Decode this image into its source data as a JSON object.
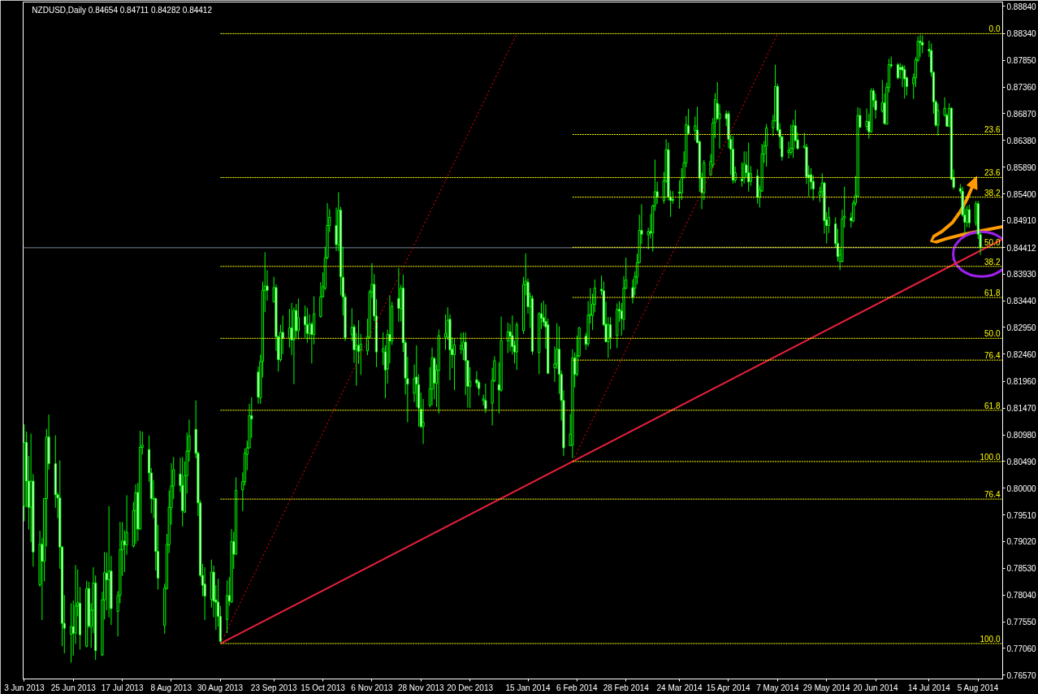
{
  "chart_data": {
    "type": "candlestick",
    "title": "NZDUSD,Daily 0.84654 0.84711 0.84282 0.84412",
    "color": "#00ff00",
    "x": [
      "2013-06-03",
      "2013-06-04",
      "2013-06-05",
      "2013-06-06",
      "2013-06-07",
      "2013-06-10",
      "2013-06-11",
      "2013-06-12",
      "2013-06-13",
      "2013-06-14",
      "2013-06-17",
      "2013-06-18",
      "2013-06-19",
      "2013-06-20",
      "2013-06-21",
      "2013-06-24",
      "2013-06-25",
      "2013-06-26",
      "2013-06-27",
      "2013-06-28",
      "2013-07-01",
      "2013-07-02",
      "2013-07-03",
      "2013-07-04",
      "2013-07-05",
      "2013-07-08",
      "2013-07-09",
      "2013-07-10",
      "2013-07-11",
      "2013-07-12",
      "2013-07-15",
      "2013-07-16",
      "2013-07-17",
      "2013-07-18",
      "2013-07-19",
      "2013-07-22",
      "2013-07-23",
      "2013-07-24",
      "2013-07-25",
      "2013-07-26",
      "2013-07-29",
      "2013-07-30",
      "2013-07-31",
      "2013-08-01",
      "2013-08-02",
      "2013-08-05",
      "2013-08-06",
      "2013-08-07",
      "2013-08-08",
      "2013-08-09",
      "2013-08-12",
      "2013-08-13",
      "2013-08-14",
      "2013-08-15",
      "2013-08-16",
      "2013-08-19",
      "2013-08-20",
      "2013-08-21",
      "2013-08-22",
      "2013-08-23",
      "2013-08-26",
      "2013-08-27",
      "2013-08-28",
      "2013-08-29",
      "2013-08-30",
      "2013-09-02",
      "2013-09-03",
      "2013-09-04",
      "2013-09-05",
      "2013-09-06",
      "2013-09-09",
      "2013-09-10",
      "2013-09-11",
      "2013-09-12",
      "2013-09-13",
      "2013-09-16",
      "2013-09-17",
      "2013-09-18",
      "2013-09-19",
      "2013-09-20",
      "2013-09-23",
      "2013-09-24",
      "2013-09-25",
      "2013-09-26",
      "2013-09-27",
      "2013-09-30",
      "2013-10-01",
      "2013-10-02",
      "2013-10-03",
      "2013-10-04",
      "2013-10-07",
      "2013-10-08",
      "2013-10-09",
      "2013-10-10",
      "2013-10-11",
      "2013-10-14",
      "2013-10-15",
      "2013-10-16",
      "2013-10-17",
      "2013-10-18",
      "2013-10-21",
      "2013-10-22",
      "2013-10-23",
      "2013-10-24",
      "2013-10-25",
      "2013-10-28",
      "2013-10-29",
      "2013-10-30",
      "2013-10-31",
      "2013-11-01",
      "2013-11-04",
      "2013-11-05",
      "2013-11-06",
      "2013-11-07",
      "2013-11-08",
      "2013-11-11",
      "2013-11-12",
      "2013-11-13",
      "2013-11-14",
      "2013-11-15",
      "2013-11-18",
      "2013-11-19",
      "2013-11-20",
      "2013-11-21",
      "2013-11-22",
      "2013-11-25",
      "2013-11-26",
      "2013-11-27",
      "2013-11-28",
      "2013-11-29",
      "2013-12-02",
      "2013-12-03",
      "2013-12-04",
      "2013-12-05",
      "2013-12-06",
      "2013-12-09",
      "2013-12-10",
      "2013-12-11",
      "2013-12-12",
      "2013-12-13",
      "2013-12-16",
      "2013-12-17",
      "2013-12-18",
      "2013-12-19",
      "2013-12-20",
      "2013-12-23",
      "2013-12-24",
      "2013-12-26",
      "2013-12-27",
      "2013-12-30",
      "2013-12-31",
      "2014-01-02",
      "2014-01-03",
      "2014-01-06",
      "2014-01-07",
      "2014-01-08",
      "2014-01-09",
      "2014-01-10",
      "2014-01-13",
      "2014-01-14",
      "2014-01-15",
      "2014-01-16",
      "2014-01-17",
      "2014-01-20",
      "2014-01-21",
      "2014-01-22",
      "2014-01-23",
      "2014-01-24",
      "2014-01-27",
      "2014-01-28",
      "2014-01-29",
      "2014-01-30",
      "2014-01-31",
      "2014-02-03",
      "2014-02-04",
      "2014-02-05",
      "2014-02-06",
      "2014-02-07",
      "2014-02-10",
      "2014-02-11",
      "2014-02-12",
      "2014-02-13",
      "2014-02-14",
      "2014-02-17",
      "2014-02-18",
      "2014-02-19",
      "2014-02-20",
      "2014-02-21",
      "2014-02-24",
      "2014-02-25",
      "2014-02-26",
      "2014-02-27",
      "2014-02-28",
      "2014-03-03",
      "2014-03-04",
      "2014-03-05",
      "2014-03-06",
      "2014-03-07",
      "2014-03-10",
      "2014-03-11",
      "2014-03-12",
      "2014-03-13",
      "2014-03-14",
      "2014-03-17",
      "2014-03-18",
      "2014-03-19",
      "2014-03-20",
      "2014-03-21",
      "2014-03-24",
      "2014-03-25",
      "2014-03-26",
      "2014-03-27",
      "2014-03-28",
      "2014-03-31",
      "2014-04-01",
      "2014-04-02",
      "2014-04-03",
      "2014-04-04",
      "2014-04-07",
      "2014-04-08",
      "2014-04-09",
      "2014-04-10",
      "2014-04-11",
      "2014-04-14",
      "2014-04-15",
      "2014-04-16",
      "2014-04-17",
      "2014-04-18",
      "2014-04-21",
      "2014-04-22",
      "2014-04-23",
      "2014-04-24",
      "2014-04-25",
      "2014-04-28",
      "2014-04-29",
      "2014-04-30",
      "2014-05-01",
      "2014-05-02",
      "2014-05-05",
      "2014-05-06",
      "2014-05-07",
      "2014-05-08",
      "2014-05-09",
      "2014-05-12",
      "2014-05-13",
      "2014-05-14",
      "2014-05-15",
      "2014-05-16",
      "2014-05-19",
      "2014-05-20",
      "2014-05-21",
      "2014-05-22",
      "2014-05-23",
      "2014-05-26",
      "2014-05-27",
      "2014-05-28",
      "2014-05-29",
      "2014-05-30",
      "2014-06-02",
      "2014-06-03",
      "2014-06-04",
      "2014-06-05",
      "2014-06-06",
      "2014-06-09",
      "2014-06-10",
      "2014-06-11",
      "2014-06-12",
      "2014-06-13",
      "2014-06-16",
      "2014-06-17",
      "2014-06-18",
      "2014-06-19",
      "2014-06-20",
      "2014-06-23",
      "2014-06-24",
      "2014-06-25",
      "2014-06-26",
      "2014-06-27",
      "2014-06-30",
      "2014-07-01",
      "2014-07-02",
      "2014-07-03",
      "2014-07-04",
      "2014-07-07",
      "2014-07-08",
      "2014-07-09",
      "2014-07-10",
      "2014-07-11",
      "2014-07-14",
      "2014-07-15",
      "2014-07-16",
      "2014-07-17",
      "2014-07-18",
      "2014-07-21",
      "2014-07-22",
      "2014-07-23",
      "2014-07-24",
      "2014-07-25",
      "2014-07-28",
      "2014-07-29",
      "2014-07-30",
      "2014-07-31",
      "2014-08-01",
      "2014-08-04",
      "2014-08-05",
      "2014-08-06"
    ],
    "ohlc": [
      [
        0.7967,
        0.8117,
        0.7939,
        0.8084
      ],
      [
        0.8084,
        0.8104,
        0.7965,
        0.8013
      ],
      [
        0.8013,
        0.8059,
        0.7924,
        0.7965
      ],
      [
        0.7965,
        0.81,
        0.7901,
        0.8013
      ],
      [
        0.8013,
        0.8026,
        0.7856,
        0.7883
      ],
      [
        0.7823,
        0.7922,
        0.7819,
        0.7897
      ],
      [
        0.7897,
        0.7909,
        0.7758,
        0.7866
      ],
      [
        0.7866,
        0.7981,
        0.7829,
        0.7981
      ],
      [
        0.7981,
        0.8109,
        0.7893,
        0.8094
      ],
      [
        0.8094,
        0.8135,
        0.8034,
        0.8045
      ],
      [
        0.8045,
        0.8097,
        0.7964,
        0.7988
      ],
      [
        0.7988,
        0.7992,
        0.7945,
        0.7982
      ],
      [
        0.7982,
        0.8051,
        0.7852,
        0.7892
      ],
      [
        0.7892,
        0.7894,
        0.771,
        0.7752
      ],
      [
        0.7752,
        0.7804,
        0.7697,
        0.7743
      ],
      [
        0.7732,
        0.7789,
        0.768,
        0.7746
      ],
      [
        0.7746,
        0.7794,
        0.7693,
        0.7734
      ],
      [
        0.7734,
        0.7859,
        0.7714,
        0.7784
      ],
      [
        0.7784,
        0.7851,
        0.7765,
        0.779
      ],
      [
        0.7789,
        0.7819,
        0.7704,
        0.7731
      ],
      [
        0.771,
        0.783,
        0.7708,
        0.7816
      ],
      [
        0.7816,
        0.7828,
        0.7744,
        0.7747
      ],
      [
        0.7746,
        0.7789,
        0.7707,
        0.7776
      ],
      [
        0.7776,
        0.7855,
        0.7734,
        0.7826
      ],
      [
        0.7826,
        0.784,
        0.7685,
        0.7702
      ],
      [
        0.7694,
        0.781,
        0.7692,
        0.7795
      ],
      [
        0.7795,
        0.7883,
        0.7759,
        0.7845
      ],
      [
        0.7844,
        0.7882,
        0.7776,
        0.7832
      ],
      [
        0.7832,
        0.7967,
        0.7763,
        0.7848
      ],
      [
        0.7848,
        0.7876,
        0.7749,
        0.7779
      ],
      [
        0.7774,
        0.7811,
        0.7728,
        0.7803
      ],
      [
        0.7804,
        0.7938,
        0.7789,
        0.7887
      ],
      [
        0.7887,
        0.7938,
        0.7839,
        0.7903
      ],
      [
        0.7903,
        0.7923,
        0.7846,
        0.7896
      ],
      [
        0.7896,
        0.7987,
        0.7878,
        0.7919
      ],
      [
        0.7894,
        0.7975,
        0.7891,
        0.7959
      ],
      [
        0.7959,
        0.8007,
        0.7898,
        0.7992
      ],
      [
        0.7992,
        0.801,
        0.7903,
        0.7925
      ],
      [
        0.7925,
        0.8105,
        0.7924,
        0.8075
      ],
      [
        0.8075,
        0.8104,
        0.8062,
        0.8079
      ],
      [
        0.8071,
        0.8097,
        0.8012,
        0.8028
      ],
      [
        0.8028,
        0.8037,
        0.7954,
        0.7981
      ],
      [
        0.7981,
        0.8015,
        0.7945,
        0.798
      ],
      [
        0.7981,
        0.7983,
        0.7849,
        0.7884
      ],
      [
        0.7884,
        0.7933,
        0.7814,
        0.7835
      ],
      [
        0.7748,
        0.7825,
        0.7733,
        0.7817
      ],
      [
        0.7816,
        0.7916,
        0.7814,
        0.7897
      ],
      [
        0.7896,
        0.7996,
        0.7881,
        0.7965
      ],
      [
        0.7964,
        0.8046,
        0.7933,
        0.8004
      ],
      [
        0.8004,
        0.8057,
        0.798,
        0.8034
      ],
      [
        0.8026,
        0.8056,
        0.7993,
        0.8005
      ],
      [
        0.8005,
        0.8057,
        0.793,
        0.7959
      ],
      [
        0.7956,
        0.8049,
        0.7955,
        0.8023
      ],
      [
        0.8023,
        0.8102,
        0.799,
        0.8068
      ],
      [
        0.8068,
        0.8126,
        0.8049,
        0.8096
      ],
      [
        0.8108,
        0.8161,
        0.8055,
        0.8064
      ],
      [
        0.8064,
        0.8067,
        0.7949,
        0.7973
      ],
      [
        0.7973,
        0.7978,
        0.7837,
        0.784
      ],
      [
        0.784,
        0.7861,
        0.7802,
        0.7822
      ],
      [
        0.7824,
        0.7855,
        0.7758,
        0.7802
      ],
      [
        0.7796,
        0.7869,
        0.7781,
        0.7846
      ],
      [
        0.7846,
        0.7858,
        0.7763,
        0.7793
      ],
      [
        0.7795,
        0.7822,
        0.774,
        0.7791
      ],
      [
        0.7791,
        0.7834,
        0.7746,
        0.7765
      ],
      [
        0.7765,
        0.7784,
        0.7717,
        0.7719
      ],
      [
        0.7759,
        0.7831,
        0.7734,
        0.7803
      ],
      [
        0.7803,
        0.7837,
        0.7784,
        0.7793
      ],
      [
        0.7791,
        0.7925,
        0.779,
        0.7902
      ],
      [
        0.7902,
        0.792,
        0.7852,
        0.7879
      ],
      [
        0.7879,
        0.802,
        0.7878,
        0.7996
      ],
      [
        0.7997,
        0.8029,
        0.7958,
        0.8012
      ],
      [
        0.8012,
        0.8073,
        0.8005,
        0.8064
      ],
      [
        0.8062,
        0.8087,
        0.8033,
        0.8074
      ],
      [
        0.8074,
        0.8155,
        0.8073,
        0.8133
      ],
      [
        0.8133,
        0.8167,
        0.8092,
        0.8127
      ],
      [
        0.8213,
        0.8223,
        0.8155,
        0.8167
      ],
      [
        0.8166,
        0.8245,
        0.8155,
        0.8232
      ],
      [
        0.8233,
        0.8379,
        0.8203,
        0.8363
      ],
      [
        0.8363,
        0.8433,
        0.8323,
        0.8371
      ],
      [
        0.8371,
        0.84,
        0.8344,
        0.8363
      ],
      [
        0.8342,
        0.8388,
        0.8341,
        0.8368
      ],
      [
        0.8368,
        0.8374,
        0.8252,
        0.8278
      ],
      [
        0.8278,
        0.828,
        0.8214,
        0.8236
      ],
      [
        0.8236,
        0.83,
        0.8232,
        0.8286
      ],
      [
        0.8286,
        0.8317,
        0.8246,
        0.8275
      ],
      [
        0.8275,
        0.8329,
        0.8258,
        0.8294
      ],
      [
        0.8294,
        0.834,
        0.8244,
        0.8272
      ],
      [
        0.8272,
        0.8332,
        0.8191,
        0.8326
      ],
      [
        0.8326,
        0.8338,
        0.8276,
        0.8289
      ],
      [
        0.8289,
        0.8348,
        0.8273,
        0.8313
      ],
      [
        0.8315,
        0.8335,
        0.8276,
        0.83
      ],
      [
        0.83,
        0.8331,
        0.8267,
        0.8284
      ],
      [
        0.8284,
        0.8319,
        0.8273,
        0.8301
      ],
      [
        0.8301,
        0.8305,
        0.8229,
        0.8282
      ],
      [
        0.8282,
        0.8352,
        0.8264,
        0.832
      ],
      [
        0.8315,
        0.8378,
        0.8313,
        0.8351
      ],
      [
        0.8351,
        0.8396,
        0.835,
        0.837
      ],
      [
        0.8367,
        0.8443,
        0.8364,
        0.8423
      ],
      [
        0.8423,
        0.8523,
        0.842,
        0.8482
      ],
      [
        0.8482,
        0.8512,
        0.847,
        0.8497
      ],
      [
        0.8482,
        0.8515,
        0.8435,
        0.8447
      ],
      [
        0.8447,
        0.8543,
        0.8435,
        0.851
      ],
      [
        0.851,
        0.8516,
        0.8354,
        0.8388
      ],
      [
        0.8387,
        0.8443,
        0.8317,
        0.8351
      ],
      [
        0.8351,
        0.8357,
        0.827,
        0.8276
      ],
      [
        0.8282,
        0.833,
        0.827,
        0.8295
      ],
      [
        0.8296,
        0.8301,
        0.823,
        0.8254
      ],
      [
        0.8255,
        0.8285,
        0.8188,
        0.8262
      ],
      [
        0.8262,
        0.8308,
        0.8228,
        0.8251
      ],
      [
        0.8254,
        0.8283,
        0.8208,
        0.8264
      ],
      [
        0.8252,
        0.8311,
        0.8244,
        0.8278
      ],
      [
        0.8277,
        0.8364,
        0.8275,
        0.836
      ],
      [
        0.836,
        0.8413,
        0.8349,
        0.8374
      ],
      [
        0.8374,
        0.8393,
        0.8307,
        0.8316
      ],
      [
        0.8316,
        0.8347,
        0.8222,
        0.825
      ],
      [
        0.825,
        0.8286,
        0.8226,
        0.8256
      ],
      [
        0.825,
        0.8262,
        0.8165,
        0.8217
      ],
      [
        0.8219,
        0.8291,
        0.8192,
        0.8282
      ],
      [
        0.8282,
        0.8354,
        0.8229,
        0.827
      ],
      [
        0.827,
        0.8342,
        0.8263,
        0.8334
      ],
      [
        0.8348,
        0.8404,
        0.8305,
        0.833
      ],
      [
        0.833,
        0.8373,
        0.8306,
        0.8367
      ],
      [
        0.8367,
        0.8392,
        0.825,
        0.8267
      ],
      [
        0.8267,
        0.8272,
        0.8172,
        0.8202
      ],
      [
        0.8201,
        0.8241,
        0.8121,
        0.8191
      ],
      [
        0.8174,
        0.8227,
        0.8158,
        0.8201
      ],
      [
        0.8204,
        0.8262,
        0.8149,
        0.8191
      ],
      [
        0.819,
        0.8209,
        0.8113,
        0.8147
      ],
      [
        0.8145,
        0.8175,
        0.811,
        0.8113
      ],
      [
        0.8113,
        0.8164,
        0.8081,
        0.8121
      ],
      [
        0.8152,
        0.8222,
        0.8148,
        0.8182
      ],
      [
        0.8182,
        0.8258,
        0.8152,
        0.8239
      ],
      [
        0.8238,
        0.8241,
        0.8163,
        0.8193
      ],
      [
        0.8192,
        0.8227,
        0.8149,
        0.8217
      ],
      [
        0.8216,
        0.8291,
        0.8137,
        0.828
      ],
      [
        0.8277,
        0.8319,
        0.8254,
        0.8284
      ],
      [
        0.8277,
        0.8332,
        0.8272,
        0.8308
      ],
      [
        0.831,
        0.8319,
        0.8198,
        0.8254
      ],
      [
        0.8255,
        0.8277,
        0.822,
        0.8245
      ],
      [
        0.8245,
        0.8275,
        0.818,
        0.8263
      ],
      [
        0.8255,
        0.8285,
        0.8246,
        0.8262
      ],
      [
        0.8255,
        0.8286,
        0.8235,
        0.8268
      ],
      [
        0.8268,
        0.8286,
        0.8171,
        0.8234
      ],
      [
        0.8234,
        0.8235,
        0.8148,
        0.8187
      ],
      [
        0.8187,
        0.8222,
        0.8147,
        0.8196
      ],
      [
        0.8199,
        0.8215,
        0.8186,
        0.8193
      ],
      [
        0.8194,
        0.8198,
        0.817,
        0.8183
      ],
      [
        0.8161,
        0.8172,
        0.8152,
        0.8164
      ],
      [
        0.8161,
        0.8192,
        0.8138,
        0.8146
      ],
      [
        0.8156,
        0.8221,
        0.8115,
        0.8198
      ],
      [
        0.8197,
        0.8242,
        0.8195,
        0.8234
      ],
      [
        0.819,
        0.8231,
        0.8137,
        0.818
      ],
      [
        0.818,
        0.8315,
        0.8177,
        0.8271
      ],
      [
        0.827,
        0.8304,
        0.8248,
        0.8287
      ],
      [
        0.8287,
        0.8301,
        0.8251,
        0.8279
      ],
      [
        0.828,
        0.8317,
        0.8245,
        0.826
      ],
      [
        0.8262,
        0.8271,
        0.8229,
        0.825
      ],
      [
        0.825,
        0.8305,
        0.8217,
        0.83
      ],
      [
        0.8289,
        0.8388,
        0.8283,
        0.8374
      ],
      [
        0.8373,
        0.8431,
        0.8354,
        0.838
      ],
      [
        0.8378,
        0.8385,
        0.832,
        0.8333
      ],
      [
        0.8333,
        0.8359,
        0.8294,
        0.8352
      ],
      [
        0.8348,
        0.8354,
        0.8245,
        0.8251
      ],
      [
        0.8249,
        0.8323,
        0.8209,
        0.832
      ],
      [
        0.832,
        0.834,
        0.8292,
        0.8312
      ],
      [
        0.8313,
        0.8344,
        0.8297,
        0.8305
      ],
      [
        0.8306,
        0.8337,
        0.8256,
        0.8296
      ],
      [
        0.83,
        0.8311,
        0.8209,
        0.8211
      ],
      [
        0.8221,
        0.826,
        0.8195,
        0.8228
      ],
      [
        0.8228,
        0.8303,
        0.8219,
        0.8255
      ],
      [
        0.8255,
        0.8297,
        0.8173,
        0.8209
      ],
      [
        0.8209,
        0.8216,
        0.8124,
        0.8161
      ],
      [
        0.8161,
        0.8179,
        0.8059,
        0.8074
      ],
      [
        0.8078,
        0.8136,
        0.8077,
        0.8099
      ],
      [
        0.8079,
        0.8255,
        0.8055,
        0.8239
      ],
      [
        0.8239,
        0.8249,
        0.8185,
        0.8209
      ],
      [
        0.8209,
        0.828,
        0.8205,
        0.8243
      ],
      [
        0.8243,
        0.8296,
        0.824,
        0.8294
      ],
      [
        0.8279,
        0.8285,
        0.8254,
        0.8264
      ],
      [
        0.8265,
        0.8343,
        0.826,
        0.8317
      ],
      [
        0.8317,
        0.8367,
        0.8302,
        0.8319
      ],
      [
        0.8317,
        0.8357,
        0.829,
        0.8338
      ],
      [
        0.8337,
        0.8383,
        0.8323,
        0.8367
      ],
      [
        0.8365,
        0.839,
        0.8354,
        0.8362
      ],
      [
        0.8362,
        0.8379,
        0.8297,
        0.83
      ],
      [
        0.8301,
        0.8342,
        0.8267,
        0.8269
      ],
      [
        0.8269,
        0.8314,
        0.8239,
        0.83
      ],
      [
        0.83,
        0.8314,
        0.8255,
        0.8276
      ],
      [
        0.828,
        0.8339,
        0.8257,
        0.8328
      ],
      [
        0.8328,
        0.8343,
        0.8305,
        0.8325
      ],
      [
        0.8325,
        0.834,
        0.828,
        0.8311
      ],
      [
        0.831,
        0.8389,
        0.829,
        0.8367
      ],
      [
        0.8367,
        0.8423,
        0.8365,
        0.8382
      ],
      [
        0.8368,
        0.8383,
        0.8339,
        0.835
      ],
      [
        0.8367,
        0.8398,
        0.8354,
        0.8388
      ],
      [
        0.8387,
        0.843,
        0.8374,
        0.8414
      ],
      [
        0.8414,
        0.8502,
        0.8413,
        0.8473
      ],
      [
        0.8473,
        0.8521,
        0.8448,
        0.8466
      ],
      [
        0.8465,
        0.8478,
        0.8438,
        0.8471
      ],
      [
        0.8471,
        0.8503,
        0.8458,
        0.8468
      ],
      [
        0.8468,
        0.852,
        0.8434,
        0.8518
      ],
      [
        0.8518,
        0.8603,
        0.8509,
        0.8544
      ],
      [
        0.8544,
        0.8562,
        0.8522,
        0.8535
      ],
      [
        0.8528,
        0.858,
        0.8522,
        0.8564
      ],
      [
        0.8564,
        0.864,
        0.856,
        0.8621
      ],
      [
        0.8621,
        0.8634,
        0.8528,
        0.8534
      ],
      [
        0.8534,
        0.8546,
        0.8498,
        0.8528
      ],
      [
        0.853,
        0.8545,
        0.8522,
        0.8528
      ],
      [
        0.8543,
        0.8565,
        0.8513,
        0.8541
      ],
      [
        0.8542,
        0.8587,
        0.8529,
        0.857
      ],
      [
        0.857,
        0.8618,
        0.8568,
        0.8597
      ],
      [
        0.8597,
        0.8683,
        0.8589,
        0.8667
      ],
      [
        0.8665,
        0.8696,
        0.8648,
        0.8651
      ],
      [
        0.8656,
        0.8682,
        0.8638,
        0.8665
      ],
      [
        0.8657,
        0.87,
        0.8633,
        0.8634
      ],
      [
        0.8636,
        0.8638,
        0.8544,
        0.8569
      ],
      [
        0.8569,
        0.8579,
        0.8512,
        0.8542
      ],
      [
        0.8542,
        0.8602,
        0.8529,
        0.8597
      ],
      [
        0.8575,
        0.8613,
        0.8573,
        0.86
      ],
      [
        0.8593,
        0.8679,
        0.8588,
        0.867
      ],
      [
        0.8671,
        0.8725,
        0.8643,
        0.8713
      ],
      [
        0.8706,
        0.8745,
        0.8676,
        0.8678
      ],
      [
        0.8678,
        0.8704,
        0.8623,
        0.8687
      ],
      [
        0.8687,
        0.8693,
        0.8664,
        0.8678
      ],
      [
        0.8687,
        0.8692,
        0.8624,
        0.864
      ],
      [
        0.864,
        0.8648,
        0.8575,
        0.8622
      ],
      [
        0.8622,
        0.8646,
        0.8559,
        0.8565
      ],
      [
        0.8565,
        0.859,
        0.856,
        0.8579
      ],
      [
        0.8567,
        0.8598,
        0.8553,
        0.8564
      ],
      [
        0.8569,
        0.8618,
        0.8559,
        0.8595
      ],
      [
        0.8593,
        0.8618,
        0.857,
        0.8579
      ],
      [
        0.8579,
        0.8634,
        0.8544,
        0.8562
      ],
      [
        0.8563,
        0.8591,
        0.8555,
        0.8577
      ],
      [
        0.8573,
        0.8585,
        0.8522,
        0.8534
      ],
      [
        0.8534,
        0.8555,
        0.8515,
        0.8547
      ],
      [
        0.8545,
        0.8632,
        0.8544,
        0.8613
      ],
      [
        0.8613,
        0.8637,
        0.8597,
        0.8628
      ],
      [
        0.8628,
        0.8668,
        0.859,
        0.8661
      ],
      [
        0.8661,
        0.8685,
        0.8646,
        0.8674
      ],
      [
        0.8674,
        0.8777,
        0.8673,
        0.8737
      ],
      [
        0.8737,
        0.8742,
        0.8654,
        0.8657
      ],
      [
        0.8658,
        0.867,
        0.8623,
        0.8645
      ],
      [
        0.8645,
        0.8646,
        0.8601,
        0.8608
      ],
      [
        0.8616,
        0.8636,
        0.8605,
        0.862
      ],
      [
        0.8616,
        0.8667,
        0.8611,
        0.8624
      ],
      [
        0.8623,
        0.8676,
        0.8606,
        0.8665
      ],
      [
        0.8665,
        0.8694,
        0.8637,
        0.8638
      ],
      [
        0.8639,
        0.8653,
        0.8621,
        0.8623
      ],
      [
        0.8625,
        0.8652,
        0.8623,
        0.8628
      ],
      [
        0.8626,
        0.8632,
        0.8558,
        0.8571
      ],
      [
        0.8575,
        0.8592,
        0.8535,
        0.857
      ],
      [
        0.8575,
        0.8587,
        0.8548,
        0.8562
      ],
      [
        0.8563,
        0.8574,
        0.8528,
        0.8549
      ],
      [
        0.8537,
        0.8553,
        0.8525,
        0.8544
      ],
      [
        0.8544,
        0.8578,
        0.8535,
        0.856
      ],
      [
        0.856,
        0.8562,
        0.8467,
        0.8491
      ],
      [
        0.8492,
        0.8507,
        0.8449,
        0.8482
      ],
      [
        0.8482,
        0.8516,
        0.8468,
        0.8497
      ],
      [
        0.8485,
        0.8497,
        0.8441,
        0.8449
      ],
      [
        0.8449,
        0.8476,
        0.8416,
        0.8425
      ],
      [
        0.8416,
        0.8439,
        0.84,
        0.8428
      ],
      [
        0.8416,
        0.8511,
        0.8414,
        0.8494
      ],
      [
        0.8496,
        0.8553,
        0.8478,
        0.8499
      ],
      [
        0.8496,
        0.8506,
        0.8478,
        0.8491
      ],
      [
        0.849,
        0.8528,
        0.8488,
        0.8523
      ],
      [
        0.8523,
        0.8573,
        0.8518,
        0.8537
      ],
      [
        0.8535,
        0.8699,
        0.8534,
        0.8684
      ],
      [
        0.8684,
        0.8697,
        0.8662,
        0.8662
      ],
      [
        0.8664,
        0.8697,
        0.8657,
        0.8673
      ],
      [
        0.8673,
        0.8687,
        0.8641,
        0.8654
      ],
      [
        0.8654,
        0.8734,
        0.8652,
        0.8729
      ],
      [
        0.8729,
        0.8734,
        0.8699,
        0.8712
      ],
      [
        0.8711,
        0.8724,
        0.8678,
        0.8694
      ],
      [
        0.8692,
        0.8749,
        0.8689,
        0.8707
      ],
      [
        0.8707,
        0.8724,
        0.8667,
        0.8669
      ],
      [
        0.8668,
        0.8744,
        0.8667,
        0.8736
      ],
      [
        0.8735,
        0.8788,
        0.8726,
        0.8777
      ],
      [
        0.8777,
        0.8792,
        0.8771,
        0.8775
      ],
      [
        0.8777,
        0.878,
        0.875,
        0.8753
      ],
      [
        0.8772,
        0.878,
        0.8751,
        0.8768
      ],
      [
        0.8773,
        0.8777,
        0.8736,
        0.8767
      ],
      [
        0.8768,
        0.8776,
        0.8715,
        0.8751
      ],
      [
        0.8753,
        0.8755,
        0.8721,
        0.8737
      ],
      [
        0.8742,
        0.8761,
        0.8714,
        0.8753
      ],
      [
        0.8753,
        0.8791,
        0.8736,
        0.8786
      ],
      [
        0.8785,
        0.8829,
        0.8782,
        0.882
      ],
      [
        0.882,
        0.8832,
        0.8791,
        0.8818
      ],
      [
        0.8818,
        0.8831,
        0.8798,
        0.8813
      ],
      [
        0.8805,
        0.8821,
        0.8791,
        0.8802
      ],
      [
        0.8803,
        0.8816,
        0.8755,
        0.8763
      ],
      [
        0.8763,
        0.8765,
        0.8687,
        0.8709
      ],
      [
        0.8709,
        0.8712,
        0.8663,
        0.8666
      ],
      [
        0.8666,
        0.8706,
        0.8647,
        0.8693
      ],
      [
        0.8684,
        0.8717,
        0.8682,
        0.8697
      ],
      [
        0.8684,
        0.8687,
        0.8663,
        0.8664
      ],
      [
        0.8664,
        0.8706,
        0.8663,
        0.8697
      ],
      [
        0.8697,
        0.8699,
        0.8565,
        0.8567
      ],
      [
        0.857,
        0.8585,
        0.8548,
        0.8552
      ],
      [
        0.855,
        0.8558,
        0.854,
        0.8545
      ],
      [
        0.8545,
        0.8553,
        0.8498,
        0.8501
      ],
      [
        0.8501,
        0.8516,
        0.8467,
        0.8488
      ],
      [
        0.8488,
        0.8518,
        0.8479,
        0.8511
      ],
      [
        0.8511,
        0.852,
        0.8478,
        0.8487
      ],
      [
        0.8487,
        0.8527,
        0.8481,
        0.8522
      ],
      [
        0.8522,
        0.8527,
        0.8457,
        0.8466
      ],
      [
        0.84654,
        0.84711,
        0.84282,
        0.84412
      ]
    ],
    "xlim": [
      "2013-06-02T12:00",
      "2014-08-16"
    ],
    "xticks": [
      {
        "value": "2013-06-03",
        "label": "3 Jun 2013"
      },
      {
        "value": "2013-06-25",
        "label": "25 Jun 2013"
      },
      {
        "value": "2013-07-17",
        "label": "17 Jul 2013"
      },
      {
        "value": "2013-08-08",
        "label": "8 Aug 2013"
      },
      {
        "value": "2013-08-30",
        "label": "30 Aug 2013"
      },
      {
        "value": "2013-09-23",
        "label": "23 Sep 2013"
      },
      {
        "value": "2013-10-15",
        "label": "15 Oct 2013"
      },
      {
        "value": "2013-11-06",
        "label": "6 Nov 2013"
      },
      {
        "value": "2013-11-28",
        "label": "28 Nov 2013"
      },
      {
        "value": "2013-12-20",
        "label": "20 Dec 2013"
      },
      {
        "value": "2014-01-15",
        "label": "15 Jan 2014"
      },
      {
        "value": "2014-02-06",
        "label": "6 Feb 2014"
      },
      {
        "value": "2014-02-28",
        "label": "28 Feb 2014"
      },
      {
        "value": "2014-03-24",
        "label": "24 Mar 2014"
      },
      {
        "value": "2014-04-15",
        "label": "15 Apr 2014"
      },
      {
        "value": "2014-05-07",
        "label": "7 May 2014"
      },
      {
        "value": "2014-05-29",
        "label": "29 May 2014"
      },
      {
        "value": "2014-06-20",
        "label": "20 Jun 2014"
      },
      {
        "value": "2014-07-14",
        "label": "14 Jul 2014"
      },
      {
        "value": "2014-08-05",
        "label": "5 Aug 2014"
      }
    ],
    "ylim": [
      0.765,
      0.8892
    ],
    "yticks": [
      {
        "value": 0.8884,
        "label": "0.88840"
      },
      {
        "value": 0.8834,
        "label": "0.88340"
      },
      {
        "value": 0.8785,
        "label": "0.87850"
      },
      {
        "value": 0.8736,
        "label": "0.87360"
      },
      {
        "value": 0.8687,
        "label": "0.86870"
      },
      {
        "value": 0.8638,
        "label": "0.86380"
      },
      {
        "value": 0.8589,
        "label": "0.85890"
      },
      {
        "value": 0.854,
        "label": "0.85400"
      },
      {
        "value": 0.8491,
        "label": "0.84910"
      },
      {
        "value": 0.8393,
        "label": "0.83930"
      },
      {
        "value": 0.8344,
        "label": "0.83440"
      },
      {
        "value": 0.8295,
        "label": "0.82950"
      },
      {
        "value": 0.8246,
        "label": "0.82460"
      },
      {
        "value": 0.8196,
        "label": "0.81960"
      },
      {
        "value": 0.8147,
        "label": "0.81470"
      },
      {
        "value": 0.8098,
        "label": "0.80980"
      },
      {
        "value": 0.8049,
        "label": "0.80490"
      },
      {
        "value": 0.8,
        "label": "0.80000"
      },
      {
        "value": 0.7951,
        "label": "0.79510"
      },
      {
        "value": 0.7902,
        "label": "0.79020"
      },
      {
        "value": 0.7853,
        "label": "0.78530"
      },
      {
        "value": 0.7804,
        "label": "0.78040"
      },
      {
        "value": 0.7755,
        "label": "0.77550"
      },
      {
        "value": 0.7706,
        "label": "0.77060"
      },
      {
        "value": 0.7657,
        "label": "0.76570"
      }
    ],
    "ref_lines": [
      {
        "axis": "y",
        "value": 0.84412,
        "label": "0.84412",
        "color": "#778899"
      }
    ],
    "series": [
      {
        "type": "line",
        "name": "0.0",
        "x": [
          "2013-08-30",
          "2014-08-16"
        ],
        "values": [
          0.8834,
          0.8834
        ],
        "color": "#ffff00",
        "line_style": "dashed"
      },
      {
        "type": "line",
        "name": "23.6",
        "x": [
          "2013-08-30",
          "2014-08-16"
        ],
        "values": [
          0.857,
          0.857
        ],
        "color": "#ffff00",
        "line_style": "dashed"
      },
      {
        "type": "line",
        "name": "38.2",
        "x": [
          "2013-08-30",
          "2014-08-16"
        ],
        "values": [
          0.8407,
          0.8407
        ],
        "color": "#ffff00",
        "line_style": "dashed"
      },
      {
        "type": "line",
        "name": "50.0",
        "x": [
          "2013-08-30",
          "2014-08-16"
        ],
        "values": [
          0.8275,
          0.8275
        ],
        "color": "#ffff00",
        "line_style": "dashed"
      },
      {
        "type": "line",
        "name": "61.8",
        "x": [
          "2013-08-30",
          "2014-08-16"
        ],
        "values": [
          0.8143,
          0.8143
        ],
        "color": "#ffff00",
        "line_style": "dashed"
      },
      {
        "type": "line",
        "name": "76.4",
        "x": [
          "2013-08-30",
          "2014-08-16"
        ],
        "values": [
          0.798,
          0.798
        ],
        "color": "#ffff00",
        "line_style": "dashed"
      },
      {
        "type": "line",
        "name": "100.0",
        "x": [
          "2013-08-30",
          "2014-08-16"
        ],
        "values": [
          0.7715,
          0.7715
        ],
        "color": "#ffff00",
        "line_style": "dashed"
      },
      {
        "type": "line",
        "name": "23.6",
        "x": [
          "2014-02-04",
          "2014-08-16"
        ],
        "values": [
          0.8649,
          0.8649
        ],
        "color": "#ffff00",
        "line_style": "dashed"
      },
      {
        "type": "line",
        "name": "38.2",
        "x": [
          "2014-02-04",
          "2014-08-16"
        ],
        "values": [
          0.8534,
          0.8534
        ],
        "color": "#ffff00",
        "line_style": "dashed"
      },
      {
        "type": "line",
        "name": "50.0",
        "x": [
          "2014-02-04",
          "2014-08-16"
        ],
        "values": [
          0.8442,
          0.8442
        ],
        "color": "#ffff00",
        "line_style": "dashed"
      },
      {
        "type": "line",
        "name": "61.8",
        "x": [
          "2014-02-04",
          "2014-08-16"
        ],
        "values": [
          0.835,
          0.835
        ],
        "color": "#ffff00",
        "line_style": "dashed"
      },
      {
        "type": "line",
        "name": "76.4",
        "x": [
          "2014-02-04",
          "2014-08-16"
        ],
        "values": [
          0.8235,
          0.8235
        ],
        "color": "#ffff00",
        "line_style": "dashed"
      },
      {
        "type": "line",
        "name": "100.0",
        "x": [
          "2014-02-04",
          "2014-08-16"
        ],
        "values": [
          0.8049,
          0.8049
        ],
        "color": "#ffff00",
        "line_style": "dashed"
      },
      {
        "type": "line",
        "x": [
          "2013-08-30",
          "2014-01-10"
        ],
        "values": [
          0.7715,
          0.8834
        ],
        "color": "#ff0000",
        "line_style": "dotted"
      },
      {
        "type": "line",
        "x": [
          "2014-02-04",
          "2014-05-07"
        ],
        "values": [
          0.8049,
          0.8834
        ],
        "color": "#ff0000",
        "line_style": "dotted"
      },
      {
        "type": "line",
        "x": [
          "2013-08-30",
          "2014-08-16"
        ],
        "values": [
          0.7715,
          0.8457
        ],
        "color": "#e8203c",
        "line_style": "solid"
      }
    ]
  }
}
